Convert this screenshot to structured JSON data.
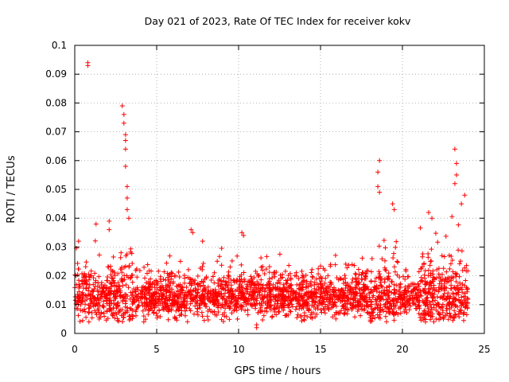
{
  "chart_data": {
    "type": "scatter",
    "title": "Day 021 of 2023, Rate Of TEC Index for receiver kokv",
    "xlabel": "GPS time / hours",
    "ylabel": "ROTI / TECUs",
    "xlim": [
      0,
      25
    ],
    "ylim": [
      0,
      0.1
    ],
    "xticks": [
      0,
      5,
      10,
      15,
      20,
      25
    ],
    "xtick_labels": [
      "0",
      "5",
      "10",
      "15",
      "20",
      "25"
    ],
    "yticks": [
      0,
      0.01,
      0.02,
      0.03,
      0.04,
      0.05,
      0.06,
      0.07,
      0.08,
      0.09,
      0.1
    ],
    "ytick_labels": [
      "0",
      "0.01",
      "0.02",
      "0.03",
      "0.04",
      "0.05",
      "0.06",
      "0.07",
      "0.08",
      "0.09",
      "0.1"
    ],
    "grid": true,
    "marker": "+",
    "color": "#ff0000",
    "series": [
      {
        "name": "kokv",
        "x_range": [
          0,
          24
        ],
        "base_level": 0.013,
        "outliers": [
          {
            "x": 0.8,
            "y": 0.093
          },
          {
            "x": 0.8,
            "y": 0.094
          },
          {
            "x": 2.9,
            "y": 0.079
          },
          {
            "x": 3.0,
            "y": 0.076
          },
          {
            "x": 3.0,
            "y": 0.073
          },
          {
            "x": 3.1,
            "y": 0.069
          },
          {
            "x": 3.1,
            "y": 0.067
          },
          {
            "x": 3.1,
            "y": 0.064
          },
          {
            "x": 3.1,
            "y": 0.058
          },
          {
            "x": 3.2,
            "y": 0.051
          },
          {
            "x": 3.2,
            "y": 0.047
          },
          {
            "x": 3.2,
            "y": 0.043
          },
          {
            "x": 3.3,
            "y": 0.04
          },
          {
            "x": 1.3,
            "y": 0.038
          },
          {
            "x": 2.1,
            "y": 0.039
          },
          {
            "x": 2.1,
            "y": 0.036
          },
          {
            "x": 7.1,
            "y": 0.036
          },
          {
            "x": 7.2,
            "y": 0.035
          },
          {
            "x": 7.8,
            "y": 0.032
          },
          {
            "x": 10.2,
            "y": 0.035
          },
          {
            "x": 10.3,
            "y": 0.034
          },
          {
            "x": 11.1,
            "y": 0.003
          },
          {
            "x": 11.1,
            "y": 0.002
          },
          {
            "x": 18.6,
            "y": 0.06
          },
          {
            "x": 18.5,
            "y": 0.056
          },
          {
            "x": 18.5,
            "y": 0.051
          },
          {
            "x": 18.6,
            "y": 0.049
          },
          {
            "x": 19.4,
            "y": 0.045
          },
          {
            "x": 19.5,
            "y": 0.043
          },
          {
            "x": 21.6,
            "y": 0.042
          },
          {
            "x": 21.8,
            "y": 0.04
          },
          {
            "x": 23.2,
            "y": 0.064
          },
          {
            "x": 23.3,
            "y": 0.059
          },
          {
            "x": 23.3,
            "y": 0.055
          },
          {
            "x": 23.2,
            "y": 0.052
          },
          {
            "x": 23.8,
            "y": 0.048
          },
          {
            "x": 23.6,
            "y": 0.045
          }
        ]
      }
    ]
  }
}
